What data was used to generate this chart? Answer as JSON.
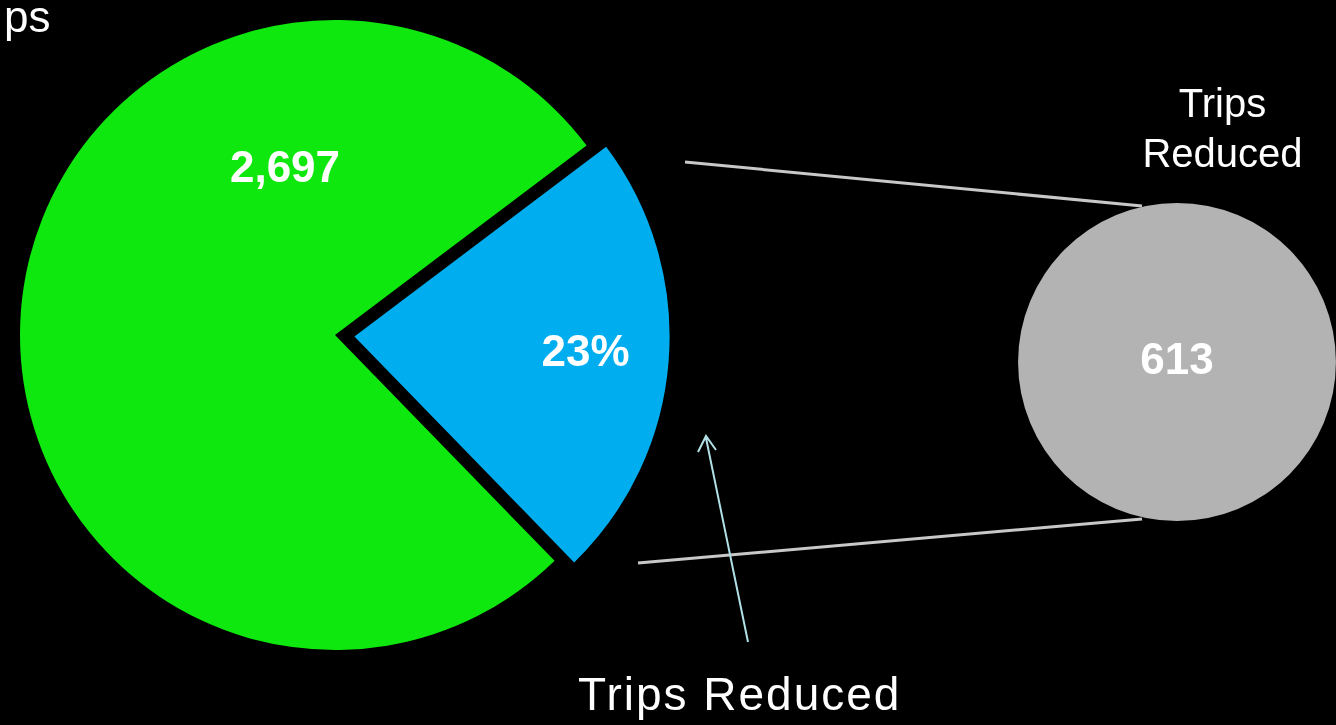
{
  "chart_data": [
    {
      "type": "pie",
      "categories": [
        null,
        "Trips Reduced"
      ],
      "values": [
        77,
        23
      ],
      "colors": [
        "#0fe80f",
        "#00aeef"
      ],
      "value_labels": [
        null,
        "23%"
      ],
      "legend": false,
      "annotations": [
        "ps",
        "2,697"
      ]
    },
    {
      "type": "pie",
      "categories": [
        "Trips Reduced"
      ],
      "values": [
        613
      ],
      "colors": [
        "#b3b3b3"
      ],
      "value_labels": [
        "613"
      ],
      "legend": false
    }
  ]
}
